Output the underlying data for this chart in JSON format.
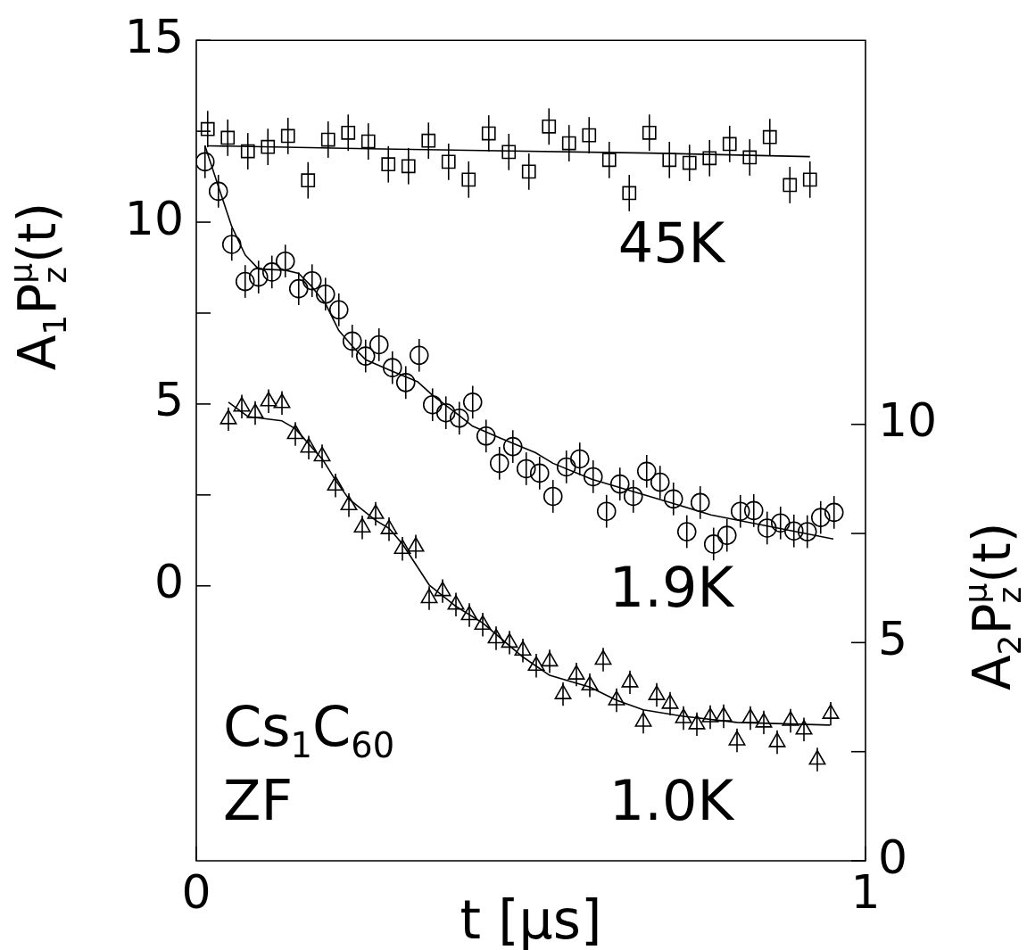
{
  "chart_data": {
    "type": "scatter",
    "xlabel": "t [μs]",
    "ylabel": "A$_{1}$P$^{μ}$$_{z}$(t)",
    "y2label": "A$_{2}$P$^{μ}$$_{z}$(t)",
    "annotations": [
      "Cs$_{1}$C$_{60}$",
      "ZF"
    ],
    "xlim": [
      0,
      1
    ],
    "xticks": [
      0,
      1
    ],
    "ylim": [
      -7.56,
      15
    ],
    "yticks": [
      0,
      {
        "value": 2.5,
        "label": null
      },
      5,
      {
        "value": 7.5,
        "label": null
      },
      10,
      {
        "value": 12.5,
        "label": null
      },
      15
    ],
    "y2lim": [
      0,
      18.8
    ],
    "y2ticks": [
      0,
      {
        "value": 2.5,
        "label": null
      },
      5,
      {
        "value": 7.5,
        "label": null
      },
      10
    ],
    "series": [
      {
        "type": "scatter",
        "name": "45K",
        "color": "#000000",
        "marker": "square",
        "x": [
          0.017,
          0.047,
          0.077,
          0.107,
          0.137,
          0.167,
          0.197,
          0.227,
          0.257,
          0.287,
          0.317,
          0.347,
          0.377,
          0.407,
          0.437,
          0.467,
          0.497,
          0.527,
          0.557,
          0.587,
          0.617,
          0.647,
          0.677,
          0.707,
          0.737,
          0.767,
          0.797,
          0.827,
          0.857,
          0.887,
          0.917
        ],
        "values": [
          12.56,
          12.32,
          11.95,
          12.07,
          12.37,
          11.15,
          12.27,
          12.46,
          12.22,
          11.59,
          11.54,
          12.24,
          11.66,
          11.17,
          12.44,
          11.93,
          11.39,
          12.63,
          12.17,
          12.39,
          11.71,
          10.8,
          12.46,
          11.71,
          11.63,
          11.76,
          12.15,
          11.78,
          12.34,
          11.02,
          11.17
        ],
        "errors": [
          0.5,
          0.5,
          0.5,
          0.5,
          0.5,
          0.5,
          0.5,
          0.5,
          0.5,
          0.5,
          0.5,
          0.5,
          0.5,
          0.5,
          0.5,
          0.5,
          0.5,
          0.5,
          0.5,
          0.5,
          0.5,
          0.5,
          0.5,
          0.5,
          0.5,
          0.5,
          0.5,
          0.5,
          0.5,
          0.5,
          0.5
        ]
      },
      {
        "type": "line",
        "color": "#000000",
        "x": [
          0.017,
          0.257,
          0.677,
          0.917
        ],
        "values": [
          12.1,
          12.02,
          11.9,
          11.8
        ]
      },
      {
        "type": "scatter",
        "name": "1.9K",
        "color": "#000000",
        "marker": "circle",
        "x": [
          0.013,
          0.033,
          0.053,
          0.073,
          0.093,
          0.113,
          0.133,
          0.153,
          0.173,
          0.193,
          0.213,
          0.233,
          0.253,
          0.273,
          0.293,
          0.313,
          0.333,
          0.353,
          0.373,
          0.393,
          0.413,
          0.433,
          0.453,
          0.473,
          0.493,
          0.513,
          0.533,
          0.553,
          0.573,
          0.593,
          0.613,
          0.633,
          0.653,
          0.673,
          0.693,
          0.713,
          0.733,
          0.753,
          0.773,
          0.793,
          0.813,
          0.833,
          0.853,
          0.873,
          0.893,
          0.913,
          0.933,
          0.953
        ],
        "values": [
          11.66,
          10.85,
          9.39,
          8.37,
          8.49,
          8.63,
          8.93,
          8.17,
          8.39,
          8.02,
          7.59,
          6.73,
          6.32,
          6.63,
          6.0,
          5.59,
          6.34,
          4.98,
          4.76,
          4.61,
          5.05,
          4.12,
          3.37,
          3.83,
          3.22,
          3.1,
          2.46,
          3.27,
          3.49,
          3.0,
          2.05,
          2.8,
          2.46,
          3.15,
          2.85,
          2.39,
          1.49,
          2.29,
          1.15,
          1.39,
          2.05,
          2.07,
          1.59,
          1.73,
          1.51,
          1.49,
          1.88,
          2.02
        ],
        "errors": [
          0.45,
          0.45,
          0.45,
          0.45,
          0.45,
          0.45,
          0.45,
          0.45,
          0.45,
          0.45,
          0.45,
          0.45,
          0.45,
          0.45,
          0.45,
          0.45,
          0.45,
          0.45,
          0.45,
          0.45,
          0.45,
          0.45,
          0.45,
          0.45,
          0.45,
          0.45,
          0.45,
          0.45,
          0.45,
          0.45,
          0.45,
          0.45,
          0.45,
          0.45,
          0.45,
          0.45,
          0.45,
          0.45,
          0.45,
          0.45,
          0.45,
          0.45,
          0.45,
          0.45,
          0.45,
          0.45,
          0.45,
          0.45
        ]
      },
      {
        "type": "line",
        "color": "#000000",
        "x": [
          0.013,
          0.033,
          0.053,
          0.073,
          0.093,
          0.133,
          0.153,
          0.173,
          0.193,
          0.213,
          0.233,
          0.253,
          0.293,
          0.331,
          0.353,
          0.393,
          0.413,
          0.453,
          0.507,
          0.533,
          0.591,
          0.703,
          0.769,
          0.857,
          0.952
        ],
        "values": [
          12.1,
          10.98,
          9.88,
          9.1,
          8.71,
          8.68,
          8.59,
          8.22,
          7.76,
          7.02,
          6.59,
          6.22,
          5.9,
          5.61,
          5.24,
          4.68,
          4.39,
          4.07,
          3.66,
          3.37,
          2.93,
          2.32,
          1.95,
          1.63,
          1.29
        ]
      },
      {
        "type": "scatter",
        "name": "1.0K",
        "color": "#000000",
        "marker": "triangle",
        "axis": "y2",
        "x": [
          0.048,
          0.068,
          0.088,
          0.108,
          0.128,
          0.148,
          0.168,
          0.188,
          0.208,
          0.228,
          0.248,
          0.268,
          0.288,
          0.308,
          0.328,
          0.348,
          0.368,
          0.388,
          0.408,
          0.428,
          0.448,
          0.468,
          0.488,
          0.508,
          0.528,
          0.548,
          0.568,
          0.588,
          0.608,
          0.628,
          0.648,
          0.668,
          0.688,
          0.708,
          0.728,
          0.748,
          0.768,
          0.788,
          0.808,
          0.828,
          0.848,
          0.868,
          0.888,
          0.908,
          0.928,
          0.948
        ],
        "values": [
          10.12,
          10.41,
          10.26,
          10.53,
          10.49,
          9.78,
          9.47,
          9.27,
          8.6,
          8.15,
          7.64,
          7.95,
          7.6,
          7.15,
          7.2,
          6.02,
          6.18,
          5.87,
          5.63,
          5.41,
          5.1,
          5.0,
          4.82,
          4.47,
          4.57,
          3.82,
          4.27,
          4.02,
          4.61,
          3.68,
          4.09,
          3.19,
          3.8,
          3.6,
          3.27,
          3.13,
          3.29,
          3.31,
          2.76,
          3.27,
          3.17,
          2.72,
          3.21,
          3.01,
          2.32,
          3.37
        ],
        "errors": [
          0.27,
          0.27,
          0.27,
          0.27,
          0.27,
          0.27,
          0.27,
          0.27,
          0.27,
          0.27,
          0.27,
          0.27,
          0.27,
          0.27,
          0.27,
          0.27,
          0.27,
          0.27,
          0.27,
          0.27,
          0.27,
          0.27,
          0.27,
          0.27,
          0.27,
          0.27,
          0.27,
          0.27,
          0.27,
          0.27,
          0.27,
          0.27,
          0.27,
          0.27,
          0.27,
          0.27,
          0.27,
          0.27,
          0.27,
          0.27,
          0.27,
          0.27,
          0.27,
          0.27,
          0.27,
          0.27
        ]
      },
      {
        "type": "line",
        "color": "#000000",
        "axis": "y2",
        "x": [
          0.048,
          0.077,
          0.128,
          0.148,
          0.189,
          0.208,
          0.228,
          0.268,
          0.288,
          0.308,
          0.348,
          0.388,
          0.428,
          0.488,
          0.528,
          0.588,
          0.628,
          0.668,
          0.728,
          0.808,
          0.947
        ],
        "values": [
          10.51,
          10.18,
          10.08,
          9.9,
          9.19,
          8.72,
          8.29,
          7.8,
          7.62,
          7.26,
          6.32,
          5.83,
          5.45,
          4.67,
          4.25,
          3.98,
          3.68,
          3.46,
          3.31,
          3.17,
          3.11
        ]
      }
    ]
  }
}
